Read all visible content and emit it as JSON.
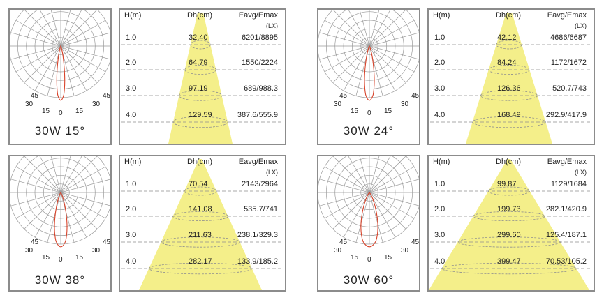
{
  "headers": {
    "height": "H(m)",
    "diameter": "Dh(cm)",
    "lux": "Eavg/Emax",
    "lux_unit": "(LX)"
  },
  "angle_labels": [
    "45",
    "30",
    "15",
    "0",
    "15",
    "30",
    "45"
  ],
  "colors": {
    "border": "#8c8c8c",
    "beam": "#f4ef8a",
    "curve": "#d8432a",
    "grid": "#9a9a9a",
    "dash": "#8f8f8f"
  },
  "panels": [
    {
      "caption": "30W 15°",
      "beam_angle_deg": 15,
      "rows": [
        {
          "h": "1.0",
          "d": "32.40",
          "e": "6201/8895"
        },
        {
          "h": "2.0",
          "d": "64.79",
          "e": "1550/2224"
        },
        {
          "h": "3.0",
          "d": "97.19",
          "e": "689/988.3"
        },
        {
          "h": "4.0",
          "d": "129.59",
          "e": "387.6/555.9"
        }
      ]
    },
    {
      "caption": "30W 24°",
      "beam_angle_deg": 24,
      "rows": [
        {
          "h": "1.0",
          "d": "42.12",
          "e": "4686/6687"
        },
        {
          "h": "2.0",
          "d": "84.24",
          "e": "1172/1672"
        },
        {
          "h": "3.0",
          "d": "126.36",
          "e": "520.7/743"
        },
        {
          "h": "4.0",
          "d": "168.49",
          "e": "292.9/417.9"
        }
      ]
    },
    {
      "caption": "30W 38°",
      "beam_angle_deg": 38,
      "rows": [
        {
          "h": "1.0",
          "d": "70.54",
          "e": "2143/2964"
        },
        {
          "h": "2.0",
          "d": "141.08",
          "e": "535.7/741"
        },
        {
          "h": "3.0",
          "d": "211.63",
          "e": "238.1/329.3"
        },
        {
          "h": "4.0",
          "d": "282.17",
          "e": "133.9/185.2"
        }
      ]
    },
    {
      "caption": "30W 60°",
      "beam_angle_deg": 60,
      "rows": [
        {
          "h": "1.0",
          "d": "99.87",
          "e": "1129/1684"
        },
        {
          "h": "2.0",
          "d": "199.73",
          "e": "282.1/420.9"
        },
        {
          "h": "3.0",
          "d": "299.60",
          "e": "125.4/187.1"
        },
        {
          "h": "4.0",
          "d": "399.47",
          "e": "70.53/105.2"
        }
      ]
    }
  ]
}
